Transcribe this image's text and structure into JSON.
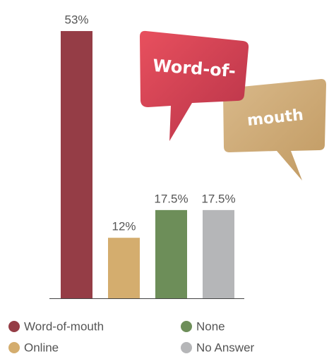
{
  "chart_data": {
    "type": "bar",
    "categories": [
      "Word-of-mouth",
      "Online",
      "None",
      "No Answer"
    ],
    "values": [
      53,
      12,
      17.5,
      17.5
    ],
    "value_labels": [
      "53%",
      "12%",
      "17.5%",
      "17.5%"
    ],
    "colors": [
      "#953d46",
      "#d4ad6e",
      "#6d8e59",
      "#b5b6b8"
    ],
    "callouts": [
      "Word-of-",
      "mouth"
    ]
  }
}
